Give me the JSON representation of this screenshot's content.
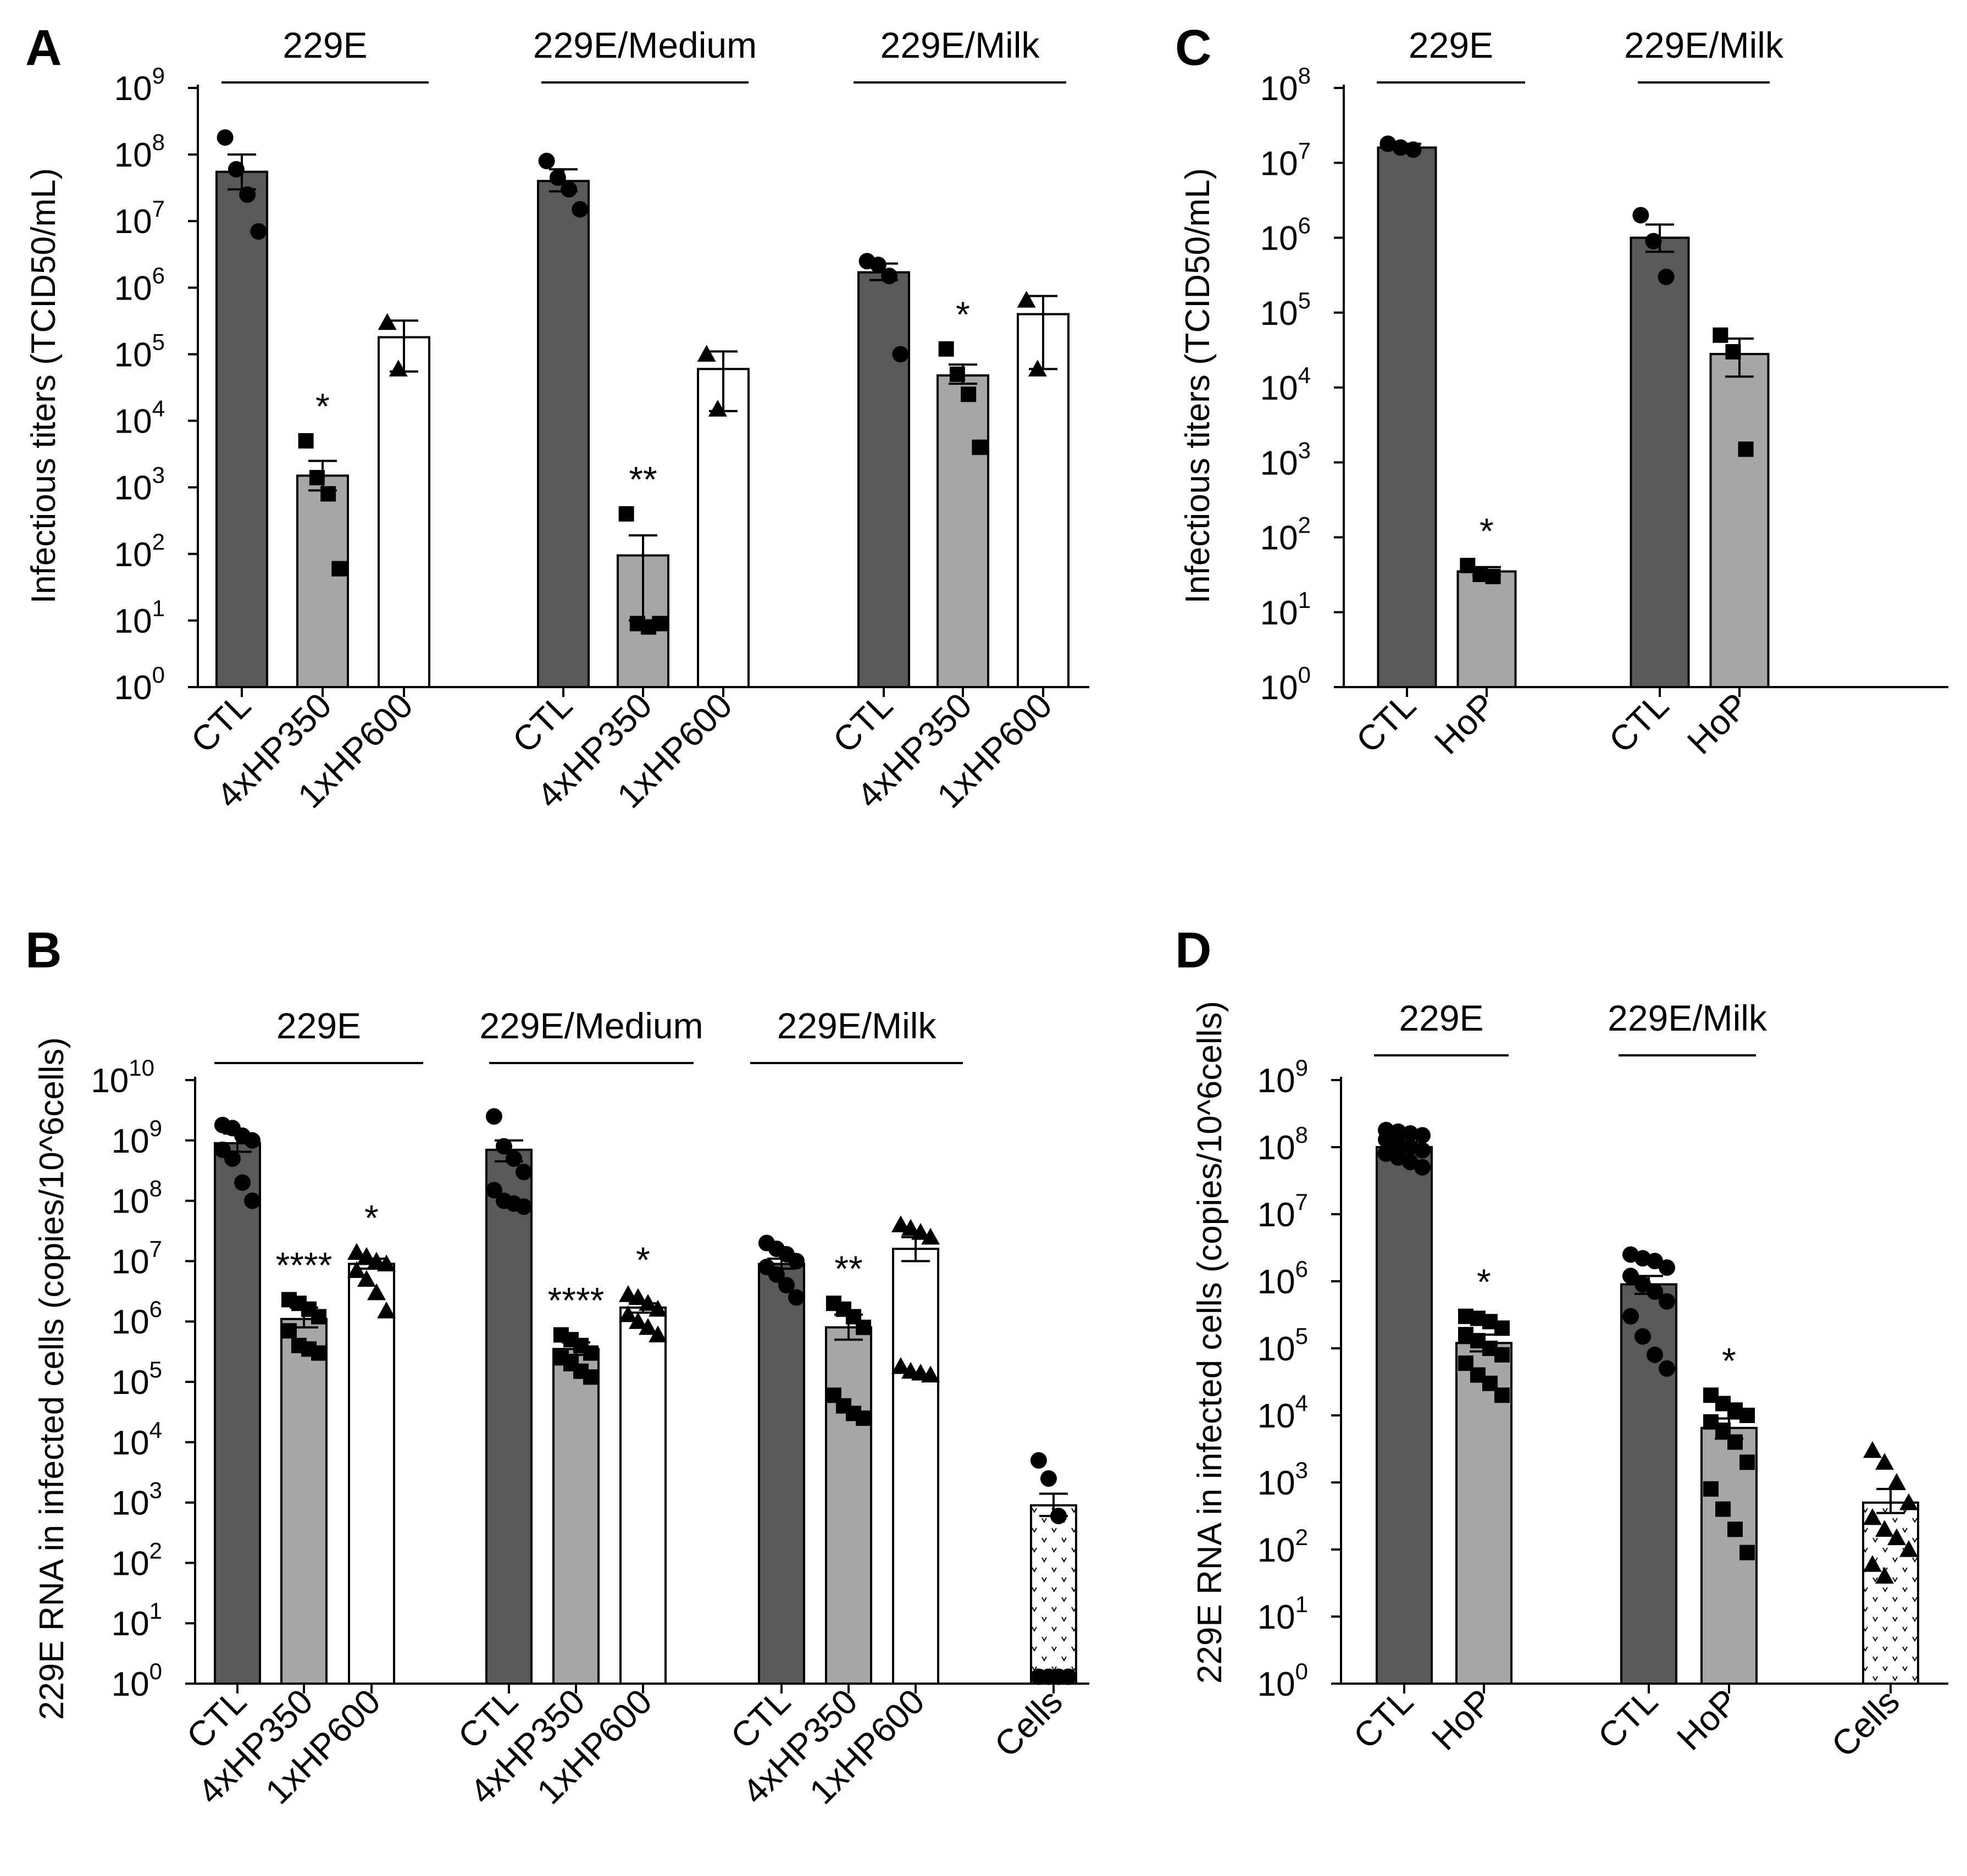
{
  "colors": {
    "ctl": "#595959",
    "treated": "#a6a6a6",
    "hp600": "#ffffff",
    "cells": "#ffffff",
    "axis": "#000000"
  },
  "chart_data": [
    {
      "panel": "A",
      "type": "bar",
      "scale": "log10",
      "ylabel": "Infectious titers (TCID50/mL)",
      "ylim_exp": [
        0,
        9
      ],
      "yticks": [
        "10^0",
        "10^1",
        "10^2",
        "10^3",
        "10^4",
        "10^5",
        "10^6",
        "10^7",
        "10^8",
        "10^9"
      ],
      "groups": [
        {
          "label": "229E",
          "bars": [
            {
              "category": "CTL",
              "mean": 55000000,
              "sem_upper": 100000000,
              "sem_lower": 30000000,
              "points": [
                180000000,
                60000000,
                25000000,
                7000000
              ],
              "marker": "circle",
              "fill": "ctl",
              "sig": ""
            },
            {
              "category": "4xHP350",
              "mean": 1500,
              "sem_upper": 2500,
              "sem_lower": 900,
              "points": [
                5000,
                1400,
                800,
                60
              ],
              "marker": "square",
              "fill": "treated",
              "sig": "*"
            },
            {
              "category": "1xHP600",
              "mean": 180000,
              "sem_upper": 320000,
              "sem_lower": 55000,
              "points": [
                300000,
                60000
              ],
              "marker": "triangle",
              "fill": "hp600",
              "sig": ""
            }
          ]
        },
        {
          "label": "229E/Medium",
          "bars": [
            {
              "category": "CTL",
              "mean": 40000000,
              "sem_upper": 60000000,
              "sem_lower": 28000000,
              "points": [
                80000000,
                45000000,
                30000000,
                15000000
              ],
              "marker": "circle",
              "fill": "ctl",
              "sig": ""
            },
            {
              "category": "4xHP350",
              "mean": 95,
              "sem_upper": 190,
              "sem_lower": 10,
              "points": [
                400,
                9,
                8,
                9
              ],
              "marker": "square",
              "fill": "treated",
              "sig": "**"
            },
            {
              "category": "1xHP600",
              "mean": 60000,
              "sem_upper": 110000,
              "sem_lower": 14000,
              "points": [
                100000,
                15000
              ],
              "marker": "triangle",
              "fill": "hp600",
              "sig": ""
            }
          ]
        },
        {
          "label": "229E/Milk",
          "bars": [
            {
              "category": "CTL",
              "mean": 1700000,
              "sem_upper": 2300000,
              "sem_lower": 1300000,
              "points": [
                2500000,
                2200000,
                1500000,
                100000
              ],
              "marker": "circle",
              "fill": "ctl",
              "sig": ""
            },
            {
              "category": "4xHP350",
              "mean": 48000,
              "sem_upper": 70000,
              "sem_lower": 36000,
              "points": [
                120000,
                50000,
                25000,
                4000
              ],
              "marker": "square",
              "fill": "treated",
              "sig": "*"
            },
            {
              "category": "1xHP600",
              "mean": 400000,
              "sem_upper": 750000,
              "sem_lower": 60000,
              "points": [
                650000,
                60000
              ],
              "marker": "triangle",
              "fill": "hp600",
              "sig": ""
            }
          ]
        }
      ]
    },
    {
      "panel": "B",
      "type": "bar",
      "scale": "log10",
      "ylabel": "229E RNA in infected cells (copies/10^6cells)",
      "ylim_exp": [
        0,
        10
      ],
      "yticks": [
        "10^0",
        "10^1",
        "10^2",
        "10^3",
        "10^4",
        "10^5",
        "10^6",
        "10^7",
        "10^8",
        "10^9",
        "10^10"
      ],
      "groups": [
        {
          "label": "229E",
          "bars": [
            {
              "category": "CTL",
              "mean": 900000000,
              "sem_upper": 1300000000,
              "sem_lower": 650000000,
              "points": [
                1800000000,
                1600000000,
                1200000000,
                1000000000,
                700000000,
                500000000,
                200000000,
                100000000
              ],
              "marker": "circle",
              "fill": "ctl",
              "sig": ""
            },
            {
              "category": "4xHP350",
              "mean": 1100000,
              "sem_upper": 1700000,
              "sem_lower": 800000,
              "points": [
                2300000,
                2000000,
                1600000,
                1200000,
                700000,
                400000,
                350000,
                300000
              ],
              "marker": "square",
              "fill": "treated",
              "sig": "****"
            },
            {
              "category": "1xHP600",
              "mean": 9000000,
              "sem_upper": 11000000,
              "sem_lower": 7500000,
              "points": [
                14000000,
                12000000,
                10000000,
                9000000,
                7000000,
                5000000,
                3000000,
                1500000
              ],
              "marker": "triangle",
              "fill": "hp600",
              "sig": "*"
            }
          ]
        },
        {
          "label": "229E/Medium",
          "bars": [
            {
              "category": "CTL",
              "mean": 700000000,
              "sem_upper": 1000000000,
              "sem_lower": 450000000,
              "points": [
                2500000000,
                800000000,
                500000000,
                300000000,
                150000000,
                100000000,
                90000000,
                80000000
              ],
              "marker": "circle",
              "fill": "ctl",
              "sig": ""
            },
            {
              "category": "4xHP350",
              "mean": 350000,
              "sem_upper": 450000,
              "sem_lower": 280000,
              "points": [
                600000,
                500000,
                400000,
                300000,
                250000,
                200000,
                150000,
                120000
              ],
              "marker": "square",
              "fill": "treated",
              "sig": "****"
            },
            {
              "category": "1xHP600",
              "mean": 1700000,
              "sem_upper": 2000000,
              "sem_lower": 1400000,
              "points": [
                2800000,
                2500000,
                2000000,
                1600000,
                1300000,
                1000000,
                800000,
                600000
              ],
              "marker": "triangle",
              "fill": "hp600",
              "sig": "*"
            }
          ]
        },
        {
          "label": "229E/Milk",
          "bars": [
            {
              "category": "CTL",
              "mean": 9000000,
              "sem_upper": 11000000,
              "sem_lower": 7500000,
              "points": [
                20000000,
                16000000,
                13000000,
                10000000,
                8000000,
                6000000,
                4000000,
                2500000
              ],
              "marker": "circle",
              "fill": "ctl",
              "sig": ""
            },
            {
              "category": "4xHP350",
              "mean": 800000,
              "sem_upper": 1300000,
              "sem_lower": 500000,
              "points": [
                2000000,
                1600000,
                1200000,
                800000,
                60000,
                40000,
                30000,
                25000
              ],
              "marker": "square",
              "fill": "treated",
              "sig": "**"
            },
            {
              "category": "1xHP600",
              "mean": 16000000,
              "sem_upper": 25000000,
              "sem_lower": 10000000,
              "points": [
                40000000,
                35000000,
                30000000,
                25000000,
                180000,
                150000,
                140000,
                130000
              ],
              "marker": "triangle",
              "fill": "hp600",
              "sig": ""
            }
          ]
        },
        {
          "label": "",
          "bars": [
            {
              "category": "Cells",
              "mean": 900,
              "sem_upper": 1400,
              "sem_lower": 600,
              "points": [
                5000,
                2500,
                600,
                1.3,
                1.3,
                1.3,
                1.3,
                1.3
              ],
              "marker": "circle",
              "fill": "cells",
              "sig": ""
            }
          ]
        }
      ]
    },
    {
      "panel": "C",
      "type": "bar",
      "scale": "log10",
      "ylabel": "Infectious titers (TCID50/mL)",
      "ylim_exp": [
        0,
        8
      ],
      "yticks": [
        "10^0",
        "10^1",
        "10^2",
        "10^3",
        "10^4",
        "10^5",
        "10^6",
        "10^7",
        "10^8"
      ],
      "groups": [
        {
          "label": "229E",
          "bars": [
            {
              "category": "CTL",
              "mean": 16000000,
              "sem_upper": 18000000,
              "sem_lower": 15000000,
              "points": [
                18000000,
                16000000,
                15000000
              ],
              "marker": "circle",
              "fill": "ctl",
              "sig": ""
            },
            {
              "category": "HoP",
              "mean": 35,
              "sem_upper": 40,
              "sem_lower": 31,
              "points": [
                42,
                32,
                30
              ],
              "marker": "square",
              "fill": "treated",
              "sig": "*"
            }
          ]
        },
        {
          "label": "229E/Milk",
          "bars": [
            {
              "category": "CTL",
              "mean": 1000000,
              "sem_upper": 1500000,
              "sem_lower": 650000,
              "points": [
                2000000,
                900000,
                300000
              ],
              "marker": "circle",
              "fill": "ctl",
              "sig": ""
            },
            {
              "category": "HoP",
              "mean": 28000,
              "sem_upper": 45000,
              "sem_lower": 14000,
              "points": [
                50000,
                30000,
                1500
              ],
              "marker": "square",
              "fill": "treated",
              "sig": ""
            }
          ]
        }
      ]
    },
    {
      "panel": "D",
      "type": "bar",
      "scale": "log10",
      "ylabel": "229E RNA in infected cells (copies/10^6cells)",
      "ylim_exp": [
        0,
        9
      ],
      "yticks": [
        "10^0",
        "10^1",
        "10^2",
        "10^3",
        "10^4",
        "10^5",
        "10^6",
        "10^7",
        "10^8",
        "10^9"
      ],
      "groups": [
        {
          "label": "229E",
          "bars": [
            {
              "category": "CTL",
              "mean": 100000000,
              "sem_upper": 120000000,
              "sem_lower": 85000000,
              "points": [
                180000000,
                170000000,
                160000000,
                150000000,
                130000000,
                110000000,
                100000000,
                90000000,
                80000000,
                70000000,
                60000000,
                50000000
              ],
              "marker": "circle",
              "fill": "ctl",
              "sig": ""
            },
            {
              "category": "HoP",
              "mean": 120000,
              "sem_upper": 160000,
              "sem_lower": 90000,
              "points": [
                300000,
                280000,
                250000,
                200000,
                160000,
                130000,
                100000,
                80000,
                60000,
                40000,
                30000,
                20000
              ],
              "marker": "square",
              "fill": "treated",
              "sig": "*"
            }
          ]
        },
        {
          "label": "229E/Milk",
          "bars": [
            {
              "category": "CTL",
              "mean": 900000,
              "sem_upper": 1200000,
              "sem_lower": 650000,
              "points": [
                2500000,
                2200000,
                2000000,
                1600000,
                1200000,
                900000,
                700000,
                500000,
                300000,
                150000,
                80000,
                50000
              ],
              "marker": "circle",
              "fill": "ctl",
              "sig": ""
            },
            {
              "category": "HoP",
              "mean": 6500,
              "sem_upper": 9000,
              "sem_lower": 4500,
              "points": [
                20000,
                15000,
                12000,
                10000,
                8000,
                6000,
                4000,
                2000,
                800,
                400,
                200,
                90
              ],
              "marker": "square",
              "fill": "treated",
              "sig": "*"
            }
          ]
        },
        {
          "label": "",
          "bars": [
            {
              "category": "Cells",
              "mean": 500,
              "sem_upper": 800,
              "sem_lower": 350,
              "points": [
                3000,
                2000,
                1000,
                500,
                300,
                200,
                150,
                100,
                60,
                40
              ],
              "marker": "triangle",
              "fill": "cells",
              "sig": ""
            }
          ]
        }
      ]
    }
  ]
}
